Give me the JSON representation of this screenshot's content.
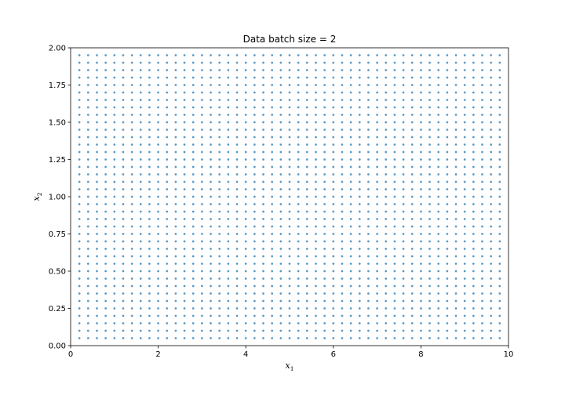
{
  "chart_data": {
    "type": "scatter",
    "title": "Data batch size = 2",
    "xlabel": "x",
    "xlabel_sub": "1",
    "ylabel": "x",
    "ylabel_sub": "2",
    "xlim": [
      0,
      10
    ],
    "ylim": [
      0,
      2
    ],
    "xticks": [
      0,
      2,
      4,
      6,
      8,
      10
    ],
    "yticks": [
      0.0,
      0.25,
      0.5,
      0.75,
      1.0,
      1.25,
      1.5,
      1.75,
      2.0
    ],
    "xtick_labels": [
      "0",
      "2",
      "4",
      "6",
      "8",
      "10"
    ],
    "ytick_labels": [
      "0.00",
      "0.25",
      "0.50",
      "0.75",
      "1.00",
      "1.25",
      "1.50",
      "1.75",
      "2.00"
    ],
    "grid": false,
    "series": [
      {
        "color": "#1f77b4",
        "x_grid": {
          "start": 0.2,
          "stop": 9.8,
          "step": 0.2
        },
        "y_grid": {
          "start": 0.05,
          "stop": 1.95,
          "step": 0.05
        }
      }
    ]
  }
}
